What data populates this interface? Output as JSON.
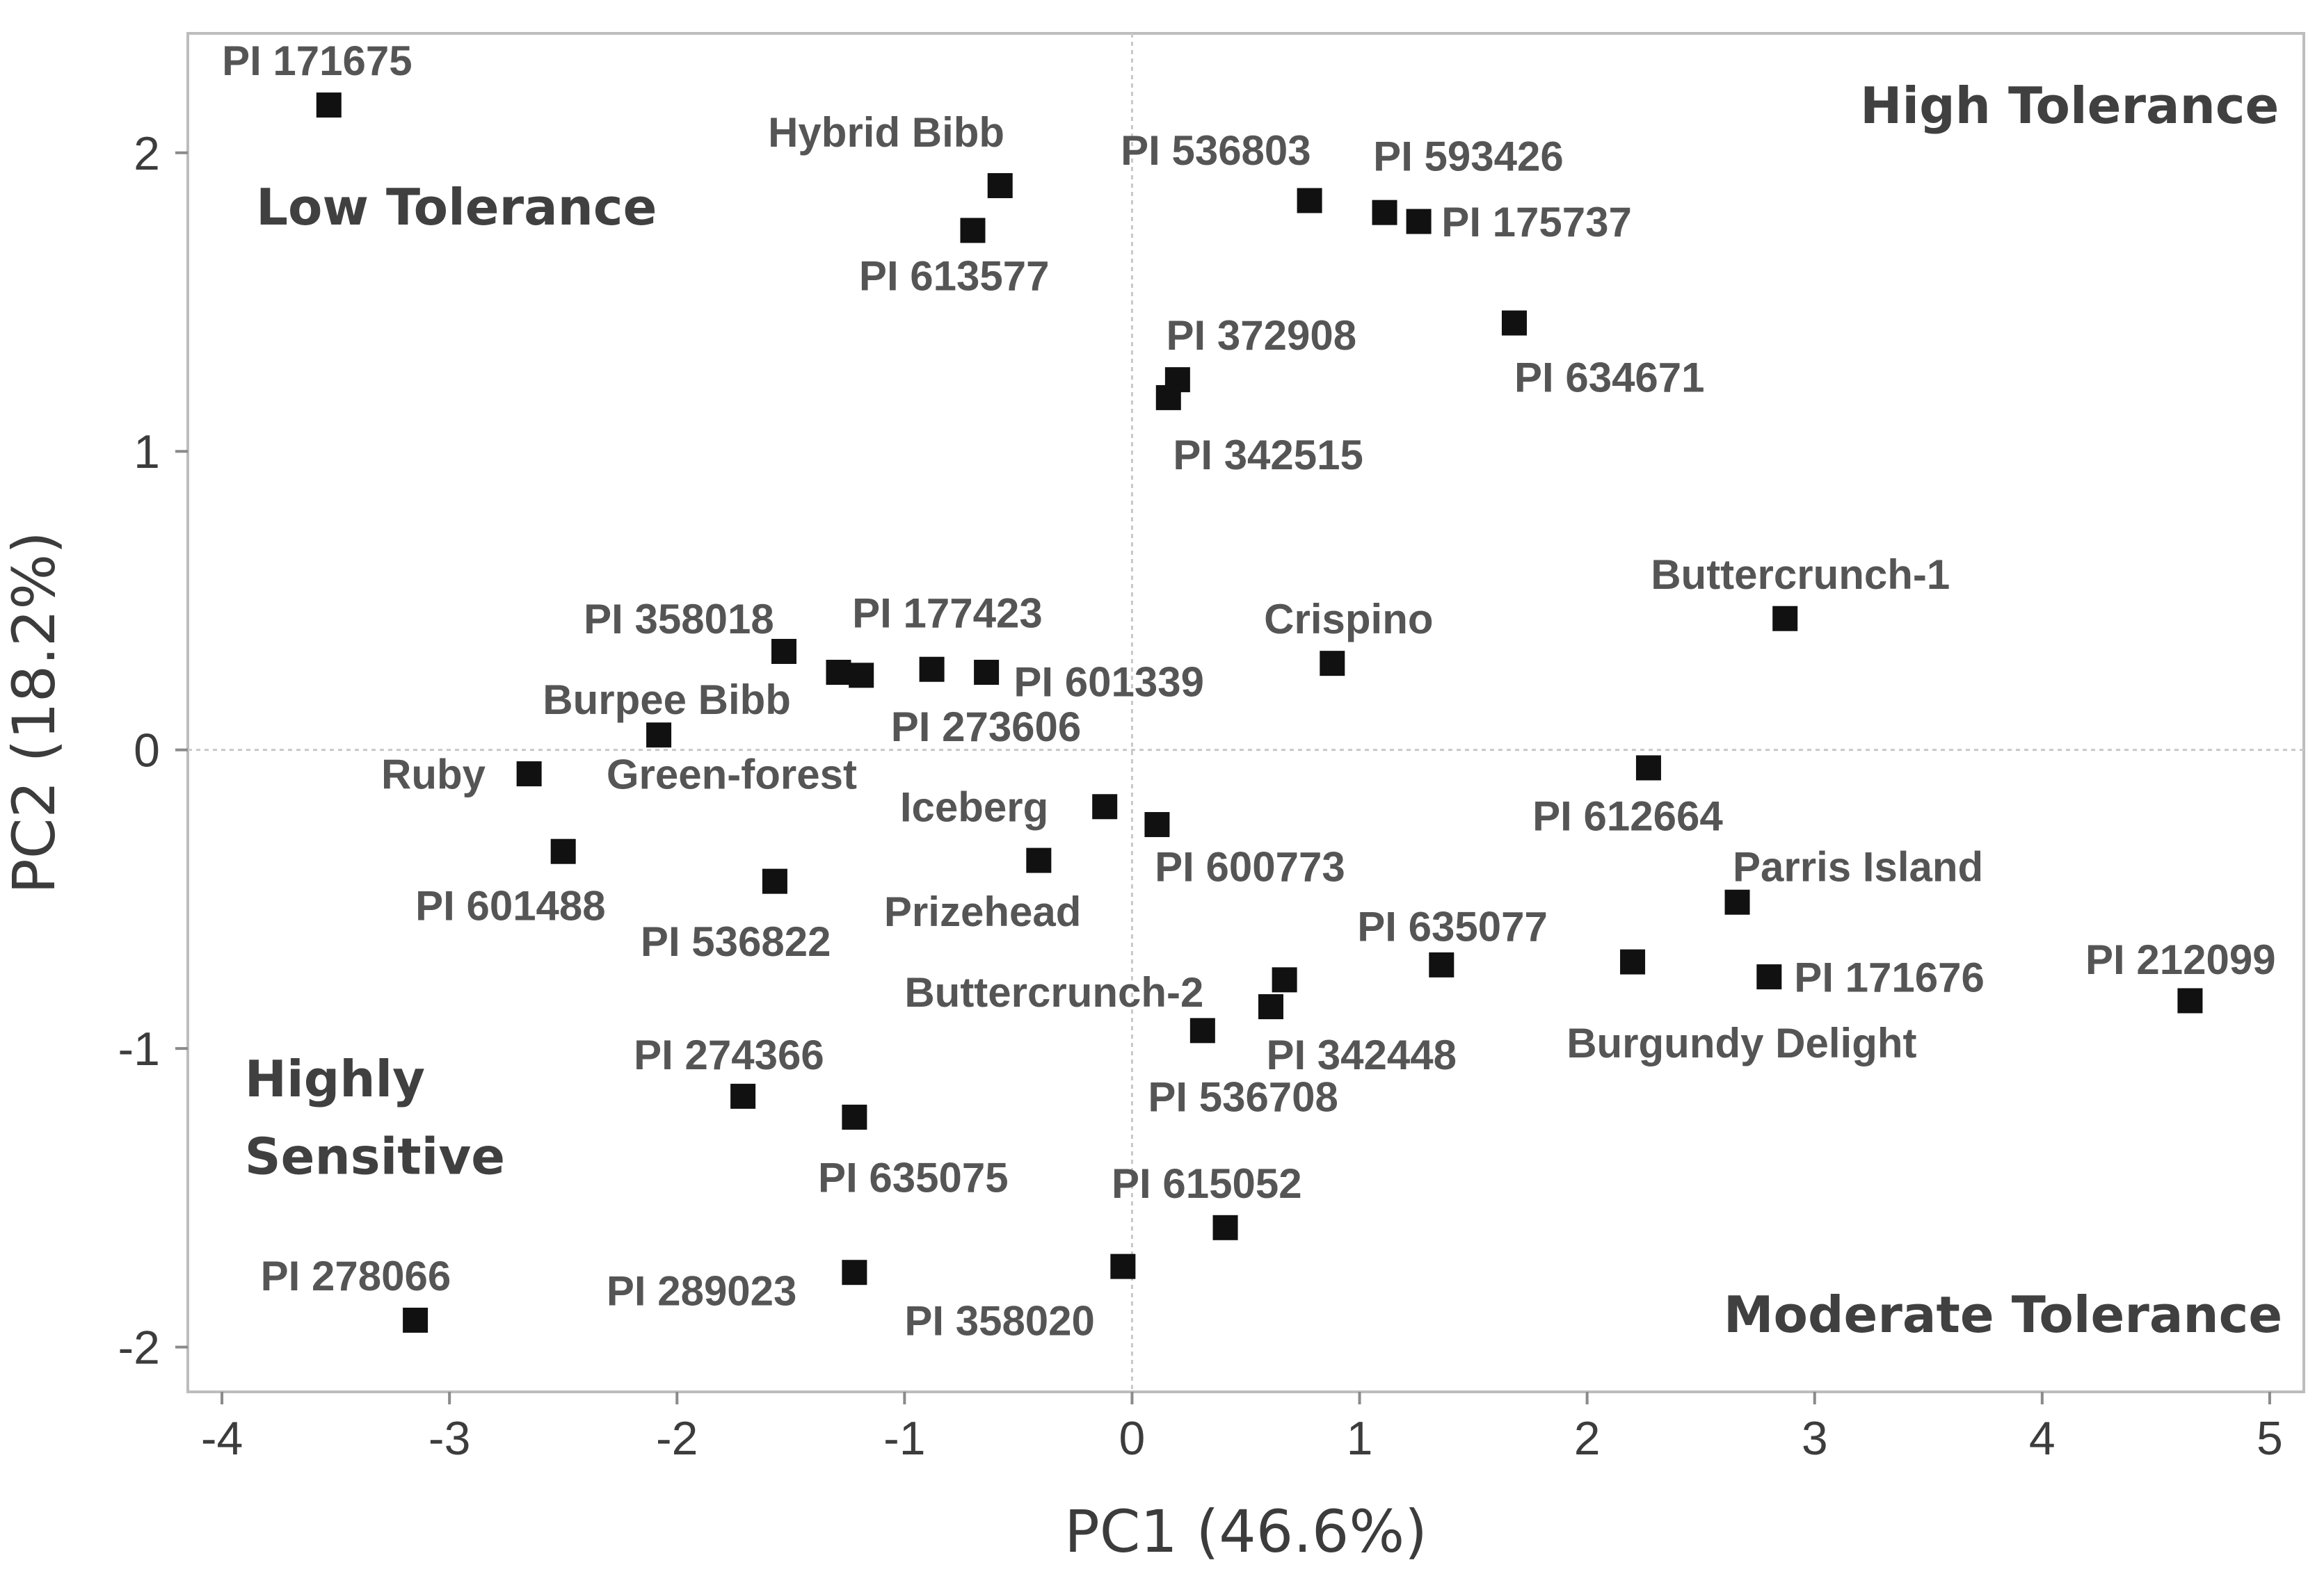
{
  "chart_data": {
    "type": "scatter",
    "title": "",
    "xlabel": "PC1 (46.6%)",
    "ylabel": "PC2 (18.2%)",
    "xlim": [
      -4.15,
      5.15
    ],
    "ylim": [
      -2.15,
      2.4
    ],
    "grid": false,
    "reference_lines": {
      "x": 0,
      "y": 0
    },
    "x_ticks": [
      -4,
      -3,
      -2,
      -1,
      0,
      1,
      2,
      3,
      4,
      5
    ],
    "y_ticks": [
      -2,
      -1,
      0,
      1,
      2
    ],
    "quadrant_labels": [
      {
        "text": "Low Tolerance",
        "x": -3.85,
        "y": 1.76
      },
      {
        "text": "High Tolerance",
        "x": 3.2,
        "y": 2.1
      },
      {
        "text": "Highly",
        "x": -3.9,
        "y": -1.16
      },
      {
        "text": "Sensitive",
        "x": -3.9,
        "y": -1.42
      },
      {
        "text": "Moderate Tolerance",
        "x": 2.6,
        "y": -1.95
      }
    ],
    "points": [
      {
        "label": "PI 171675",
        "x": -3.53,
        "y": 2.16,
        "lx": -4.0,
        "ly": 2.26
      },
      {
        "label": "Hybrid Bibb",
        "x": -0.58,
        "y": 1.89,
        "lx": -1.6,
        "ly": 2.02
      },
      {
        "label": "PI 613577",
        "x": -0.7,
        "y": 1.74,
        "lx": -1.2,
        "ly": 1.54
      },
      {
        "label": "PI 536803",
        "x": 0.78,
        "y": 1.84,
        "lx": -0.05,
        "ly": 1.96
      },
      {
        "label": "PI 593426",
        "x": 1.11,
        "y": 1.8,
        "lx": 1.06,
        "ly": 1.94
      },
      {
        "label": "PI 175737",
        "x": 1.26,
        "y": 1.77,
        "lx": 1.36,
        "ly": 1.72
      },
      {
        "label": "PI 372908",
        "x": 0.2,
        "y": 1.24,
        "lx": 0.15,
        "ly": 1.34
      },
      {
        "label": "PI 342515",
        "x": 0.16,
        "y": 1.18,
        "lx": 0.18,
        "ly": 0.94
      },
      {
        "label": "PI 634671",
        "x": 1.68,
        "y": 1.43,
        "lx": 1.68,
        "ly": 1.2
      },
      {
        "label": "Buttercrunch-1",
        "x": 2.87,
        "y": 0.44,
        "lx": 2.28,
        "ly": 0.54
      },
      {
        "label": "Crispino",
        "x": 0.88,
        "y": 0.29,
        "lx": 0.58,
        "ly": 0.39
      },
      {
        "label": "PI 358018",
        "x": -1.53,
        "y": 0.33,
        "lx": -2.41,
        "ly": 0.39
      },
      {
        "label": "PI 177423",
        "x": -0.88,
        "y": 0.27,
        "lx": -1.23,
        "ly": 0.41
      },
      {
        "label": "Burpee Bibb",
        "x": -1.29,
        "y": 0.26,
        "lx": -2.59,
        "ly": 0.12
      },
      {
        "label": "PI 601339",
        "x": -0.64,
        "y": 0.26,
        "lx": -0.52,
        "ly": 0.18
      },
      {
        "label": "PI 273606",
        "x": -1.19,
        "y": 0.25,
        "lx": -1.06,
        "ly": 0.03
      },
      {
        "label": "Green-forest",
        "x": -2.08,
        "y": 0.05,
        "lx": -2.31,
        "ly": -0.13
      },
      {
        "label": "Ruby",
        "x": -2.65,
        "y": -0.08,
        "lx": -3.3,
        "ly": -0.13
      },
      {
        "label": "PI 612664",
        "x": 2.27,
        "y": -0.06,
        "lx": 1.76,
        "ly": -0.27
      },
      {
        "label": "Iceberg",
        "x": -0.12,
        "y": -0.19,
        "lx": -1.02,
        "ly": -0.24
      },
      {
        "label": "PI 600773",
        "x": 0.11,
        "y": -0.25,
        "lx": 0.1,
        "ly": -0.44
      },
      {
        "label": "PI 601488",
        "x": -2.5,
        "y": -0.34,
        "lx": -3.15,
        "ly": -0.57
      },
      {
        "label": "PI 536822",
        "x": -1.57,
        "y": -0.44,
        "lx": -2.16,
        "ly": -0.69
      },
      {
        "label": "Prizehead",
        "x": -0.41,
        "y": -0.37,
        "lx": -1.09,
        "ly": -0.59
      },
      {
        "label": "Parris Island",
        "x": 2.66,
        "y": -0.51,
        "lx": 2.64,
        "ly": -0.44
      },
      {
        "label": "PI 635077",
        "x": 1.36,
        "y": -0.72,
        "lx": 0.99,
        "ly": -0.64
      },
      {
        "label": "PI 212099",
        "x": 4.65,
        "y": -0.84,
        "lx": 4.19,
        "ly": -0.75
      },
      {
        "label": "PI 171676",
        "x": 2.8,
        "y": -0.76,
        "lx": 2.91,
        "ly": -0.81
      },
      {
        "label": "Burgundy Delight",
        "x": 2.2,
        "y": -0.71,
        "lx": 1.91,
        "ly": -1.03
      },
      {
        "label": "Buttercrunch-2",
        "x": 0.67,
        "y": -0.77,
        "lx": -1.0,
        "ly": -0.86
      },
      {
        "label": "PI 342448",
        "x": 0.61,
        "y": -0.86,
        "lx": 0.59,
        "ly": -1.07
      },
      {
        "label": "PI 536708",
        "x": 0.31,
        "y": -0.94,
        "lx": 0.07,
        "ly": -1.21
      },
      {
        "label": "PI 274366",
        "x": -1.71,
        "y": -1.16,
        "lx": -2.19,
        "ly": -1.07
      },
      {
        "label": "PI 635075",
        "x": -1.22,
        "y": -1.23,
        "lx": -1.38,
        "ly": -1.48
      },
      {
        "label": "PI 615052",
        "x": 0.41,
        "y": -1.6,
        "lx": -0.09,
        "ly": -1.5
      },
      {
        "label": "PI 278066",
        "x": -3.15,
        "y": -1.91,
        "lx": -3.83,
        "ly": -1.81
      },
      {
        "label": "PI 289023",
        "x": -1.22,
        "y": -1.75,
        "lx": -2.31,
        "ly": -1.86
      },
      {
        "label": "PI 358020",
        "x": -0.04,
        "y": -1.73,
        "lx": -1.0,
        "ly": -1.96
      }
    ]
  }
}
